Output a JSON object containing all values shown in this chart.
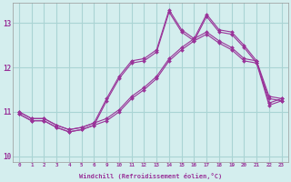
{
  "xlabel": "Windchill (Refroidissement éolien,°C)",
  "background_color": "#d4eeee",
  "grid_color": "#aad4d4",
  "line_color": "#993399",
  "tick_color": "#993399",
  "hour_labels": [
    "0",
    "1",
    "2",
    "3",
    "4",
    "5",
    "6",
    "9",
    "10",
    "11",
    "12",
    "13",
    "14",
    "15",
    "16",
    "17",
    "18",
    "19",
    "20",
    "21",
    "22",
    "23"
  ],
  "s1_y": [
    11.0,
    10.85,
    10.85,
    10.7,
    10.6,
    10.65,
    10.75,
    10.85,
    11.05,
    11.35,
    11.55,
    11.8,
    12.2,
    12.45,
    12.65,
    12.8,
    12.6,
    12.45,
    12.2,
    12.15,
    11.35,
    11.3
  ],
  "s2_y": [
    10.95,
    10.8,
    10.8,
    10.65,
    10.55,
    10.6,
    10.7,
    10.8,
    11.0,
    11.3,
    11.5,
    11.75,
    12.15,
    12.4,
    12.6,
    12.75,
    12.55,
    12.4,
    12.15,
    12.1,
    11.3,
    11.25
  ],
  "s3_y": [
    11.0,
    10.85,
    10.85,
    10.7,
    10.6,
    10.65,
    10.75,
    11.3,
    11.8,
    12.15,
    12.2,
    12.4,
    13.3,
    12.85,
    12.65,
    13.2,
    12.85,
    12.8,
    12.5,
    12.15,
    11.2,
    11.3
  ],
  "s4_y": [
    10.95,
    10.8,
    10.8,
    10.65,
    10.55,
    10.6,
    10.7,
    11.25,
    11.75,
    12.1,
    12.15,
    12.35,
    13.25,
    12.8,
    12.6,
    13.15,
    12.8,
    12.75,
    12.45,
    12.1,
    11.15,
    11.25
  ],
  "ylim": [
    9.88,
    13.45
  ],
  "yticks": [
    10,
    11,
    12,
    13
  ]
}
